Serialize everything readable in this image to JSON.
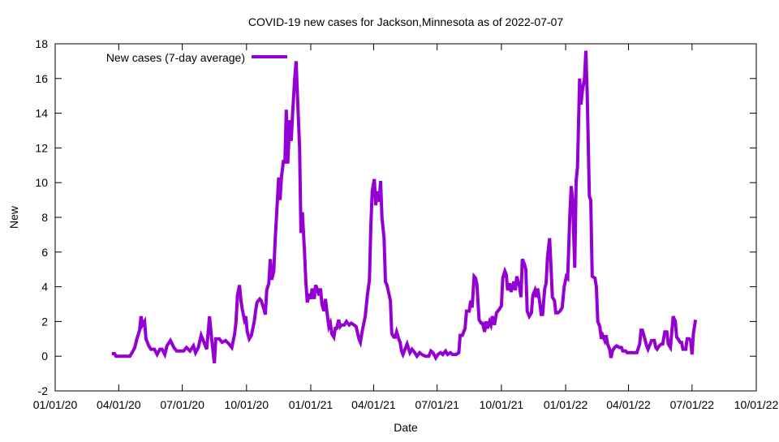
{
  "chart_data": {
    "type": "line",
    "title": "COVID-19 new cases for Jackson,Minnesota as of 2022-07-07",
    "xlabel": "Date",
    "ylabel": "New",
    "x_units": "days since 2020-01-01",
    "xlim": [
      0,
      1004
    ],
    "ylim": [
      -2,
      18
    ],
    "yticks": [
      -2,
      0,
      2,
      4,
      6,
      8,
      10,
      12,
      14,
      16,
      18
    ],
    "xticks": [
      {
        "day": 0,
        "label": "01/01/20"
      },
      {
        "day": 91,
        "label": "04/01/20"
      },
      {
        "day": 182,
        "label": "07/01/20"
      },
      {
        "day": 274,
        "label": "10/01/20"
      },
      {
        "day": 366,
        "label": "01/01/21"
      },
      {
        "day": 456,
        "label": "04/01/21"
      },
      {
        "day": 547,
        "label": "07/01/21"
      },
      {
        "day": 639,
        "label": "10/01/21"
      },
      {
        "day": 731,
        "label": "01/01/22"
      },
      {
        "day": 821,
        "label": "04/01/22"
      },
      {
        "day": 912,
        "label": "07/01/22"
      },
      {
        "day": 1004,
        "label": "10/01/22"
      }
    ],
    "grid": false,
    "legend_position": "top-left",
    "series": [
      {
        "name": "New cases (7-day average)",
        "color": "#9400D3",
        "points": [
          [
            81,
            0.15
          ],
          [
            85,
            0.15
          ],
          [
            87,
            0
          ],
          [
            107,
            0
          ],
          [
            110,
            0.2
          ],
          [
            114,
            0.5
          ],
          [
            117,
            1.0
          ],
          [
            121,
            1.5
          ],
          [
            123,
            2.3
          ],
          [
            125,
            1.8
          ],
          [
            128,
            2.0
          ],
          [
            130,
            1.0
          ],
          [
            134,
            0.6
          ],
          [
            137,
            0.4
          ],
          [
            142,
            0.4
          ],
          [
            146,
            0.1
          ],
          [
            150,
            0.4
          ],
          [
            153,
            0.4
          ],
          [
            157,
            0.1
          ],
          [
            160,
            0.6
          ],
          [
            165,
            0.9
          ],
          [
            170,
            0.5
          ],
          [
            174,
            0.3
          ],
          [
            179,
            0.3
          ],
          [
            184,
            0.3
          ],
          [
            188,
            0.5
          ],
          [
            193,
            0.3
          ],
          [
            198,
            0.6
          ],
          [
            201,
            0.2
          ],
          [
            205,
            0.5
          ],
          [
            209,
            1.2
          ],
          [
            214,
            0.7
          ],
          [
            217,
            0.4
          ],
          [
            221,
            2.3
          ],
          [
            224,
            1.0
          ],
          [
            228,
            -0.4
          ],
          [
            230,
            1.0
          ],
          [
            235,
            1.0
          ],
          [
            239,
            0.8
          ],
          [
            244,
            0.9
          ],
          [
            249,
            0.7
          ],
          [
            253,
            0.5
          ],
          [
            257,
            1.3
          ],
          [
            259,
            2.0
          ],
          [
            261,
            3.5
          ],
          [
            264,
            4.1
          ],
          [
            266,
            3.2
          ],
          [
            268,
            2.7
          ],
          [
            271,
            2.1
          ],
          [
            273,
            2.3
          ],
          [
            275,
            1.4
          ],
          [
            278,
            1.0
          ],
          [
            281,
            1.2
          ],
          [
            285,
            2.0
          ],
          [
            287,
            2.6
          ],
          [
            289,
            3.1
          ],
          [
            293,
            3.3
          ],
          [
            295,
            3.2
          ],
          [
            299,
            2.7
          ],
          [
            301,
            2.4
          ],
          [
            303,
            3.8
          ],
          [
            306,
            4.2
          ],
          [
            308,
            5.6
          ],
          [
            310,
            4.4
          ],
          [
            313,
            4.9
          ],
          [
            315,
            6.7
          ],
          [
            317,
            8.1
          ],
          [
            320,
            10.3
          ],
          [
            322,
            9.0
          ],
          [
            324,
            10.3
          ],
          [
            327,
            11.3
          ],
          [
            329,
            11.1
          ],
          [
            331,
            14.2
          ],
          [
            333,
            11.1
          ],
          [
            336,
            13.6
          ],
          [
            338,
            12.4
          ],
          [
            340,
            14.0
          ],
          [
            343,
            16.0
          ],
          [
            345,
            17.0
          ],
          [
            347,
            15.0
          ],
          [
            350,
            12.0
          ],
          [
            352,
            7.1
          ],
          [
            354,
            8.3
          ],
          [
            357,
            6.1
          ],
          [
            359,
            4.3
          ],
          [
            361,
            3.1
          ],
          [
            364,
            3.6
          ],
          [
            366,
            3.3
          ],
          [
            368,
            3.9
          ],
          [
            371,
            3.3
          ],
          [
            373,
            4.1
          ],
          [
            375,
            3.9
          ],
          [
            378,
            3.5
          ],
          [
            380,
            3.9
          ],
          [
            382,
            3.0
          ],
          [
            385,
            2.6
          ],
          [
            387,
            3.3
          ],
          [
            389,
            2.6
          ],
          [
            392,
            1.7
          ],
          [
            394,
            1.9
          ],
          [
            396,
            1.3
          ],
          [
            399,
            1.1
          ],
          [
            401,
            1.6
          ],
          [
            403,
            1.6
          ],
          [
            406,
            2.1
          ],
          [
            408,
            1.7
          ],
          [
            410,
            1.8
          ],
          [
            414,
            1.8
          ],
          [
            417,
            2.0
          ],
          [
            421,
            1.8
          ],
          [
            424,
            1.9
          ],
          [
            428,
            1.8
          ],
          [
            431,
            1.7
          ],
          [
            435,
            1.0
          ],
          [
            437,
            0.8
          ],
          [
            440,
            1.5
          ],
          [
            444,
            2.3
          ],
          [
            447,
            3.5
          ],
          [
            450,
            4.4
          ],
          [
            452,
            7.5
          ],
          [
            454,
            9.5
          ],
          [
            457,
            10.2
          ],
          [
            459,
            8.7
          ],
          [
            461,
            9.5
          ],
          [
            464,
            8.9
          ],
          [
            466,
            10.1
          ],
          [
            468,
            8.0
          ],
          [
            471,
            6.8
          ],
          [
            473,
            4.3
          ],
          [
            475,
            4.1
          ],
          [
            478,
            3.6
          ],
          [
            480,
            3.2
          ],
          [
            482,
            1.3
          ],
          [
            485,
            1.1
          ],
          [
            487,
            1.1
          ],
          [
            489,
            1.4
          ],
          [
            492,
            1.0
          ],
          [
            494,
            0.8
          ],
          [
            496,
            0.3
          ],
          [
            498,
            0.1
          ],
          [
            501,
            0.4
          ],
          [
            504,
            0.7
          ],
          [
            508,
            0.2
          ],
          [
            511,
            0.4
          ],
          [
            515,
            0.2
          ],
          [
            518,
            0.0
          ],
          [
            522,
            0.2
          ],
          [
            525,
            0.1
          ],
          [
            530,
            0.0
          ],
          [
            535,
            0.0
          ],
          [
            538,
            0.3
          ],
          [
            541,
            0.2
          ],
          [
            545,
            -0.1
          ],
          [
            548,
            0.1
          ],
          [
            552,
            0.2
          ],
          [
            555,
            0.1
          ],
          [
            559,
            0.3
          ],
          [
            562,
            0.1
          ],
          [
            566,
            0.2
          ],
          [
            569,
            0.1
          ],
          [
            574,
            0.1
          ],
          [
            578,
            0.2
          ],
          [
            580,
            1.2
          ],
          [
            583,
            1.2
          ],
          [
            587,
            1.6
          ],
          [
            589,
            2.6
          ],
          [
            593,
            2.6
          ],
          [
            595,
            3.2
          ],
          [
            597,
            2.8
          ],
          [
            600,
            4.6
          ],
          [
            602,
            4.5
          ],
          [
            604,
            4.1
          ],
          [
            607,
            2.1
          ],
          [
            610,
            1.9
          ],
          [
            612,
            1.9
          ],
          [
            615,
            1.4
          ],
          [
            617,
            2.0
          ],
          [
            619,
            1.6
          ],
          [
            622,
            2.0
          ],
          [
            624,
            1.8
          ],
          [
            626,
            2.3
          ],
          [
            629,
            1.8
          ],
          [
            632,
            2.5
          ],
          [
            636,
            2.7
          ],
          [
            639,
            2.9
          ],
          [
            641,
            4.5
          ],
          [
            644,
            4.9
          ],
          [
            646,
            4.7
          ],
          [
            648,
            3.8
          ],
          [
            651,
            4.2
          ],
          [
            653,
            3.7
          ],
          [
            657,
            4.3
          ],
          [
            659,
            3.8
          ],
          [
            661,
            4.6
          ],
          [
            665,
            4.0
          ],
          [
            667,
            3.4
          ],
          [
            669,
            5.6
          ],
          [
            672,
            5.3
          ],
          [
            674,
            5.0
          ],
          [
            676,
            2.6
          ],
          [
            679,
            2.3
          ],
          [
            682,
            2.5
          ],
          [
            684,
            3.5
          ],
          [
            687,
            3.8
          ],
          [
            689,
            3.4
          ],
          [
            691,
            3.9
          ],
          [
            694,
            3.1
          ],
          [
            696,
            2.4
          ],
          [
            698,
            2.4
          ],
          [
            701,
            3.9
          ],
          [
            703,
            4.2
          ],
          [
            705,
            5.7
          ],
          [
            708,
            6.8
          ],
          [
            710,
            5.2
          ],
          [
            712,
            3.4
          ],
          [
            715,
            3.2
          ],
          [
            717,
            2.5
          ],
          [
            720,
            2.5
          ],
          [
            723,
            2.6
          ],
          [
            726,
            2.8
          ],
          [
            729,
            4.0
          ],
          [
            732,
            4.6
          ],
          [
            734,
            4.5
          ],
          [
            737,
            8.1
          ],
          [
            739,
            9.8
          ],
          [
            741,
            9.0
          ],
          [
            744,
            5.1
          ],
          [
            746,
            10.1
          ],
          [
            748,
            10.9
          ],
          [
            751,
            16.0
          ],
          [
            753,
            14.5
          ],
          [
            755,
            15.3
          ],
          [
            758,
            16.0
          ],
          [
            760,
            17.6
          ],
          [
            762,
            15.0
          ],
          [
            765,
            9.2
          ],
          [
            767,
            9.0
          ],
          [
            769,
            4.6
          ],
          [
            773,
            4.5
          ],
          [
            775,
            4.0
          ],
          [
            777,
            2.0
          ],
          [
            780,
            1.7
          ],
          [
            782,
            1.0
          ],
          [
            784,
            1.2
          ],
          [
            787,
            0.9
          ],
          [
            789,
            1.2
          ],
          [
            791,
            0.7
          ],
          [
            794,
            0.4
          ],
          [
            796,
            -0.1
          ],
          [
            798,
            0.3
          ],
          [
            801,
            0.5
          ],
          [
            804,
            0.6
          ],
          [
            808,
            0.5
          ],
          [
            811,
            0.5
          ],
          [
            813,
            0.3
          ],
          [
            817,
            0.3
          ],
          [
            819,
            0.2
          ],
          [
            823,
            0.2
          ],
          [
            826,
            0.2
          ],
          [
            830,
            0.2
          ],
          [
            833,
            0.2
          ],
          [
            837,
            0.7
          ],
          [
            839,
            1.5
          ],
          [
            841,
            1.5
          ],
          [
            845,
            0.9
          ],
          [
            847,
            0.6
          ],
          [
            849,
            0.4
          ],
          [
            852,
            0.7
          ],
          [
            854,
            0.9
          ],
          [
            858,
            0.9
          ],
          [
            860,
            0.5
          ],
          [
            862,
            0.4
          ],
          [
            865,
            0.6
          ],
          [
            868,
            0.7
          ],
          [
            870,
            0.7
          ],
          [
            873,
            1.4
          ],
          [
            876,
            1.4
          ],
          [
            878,
            0.7
          ],
          [
            881,
            0.5
          ],
          [
            883,
            1.4
          ],
          [
            885,
            2.3
          ],
          [
            888,
            2.0
          ],
          [
            890,
            1.1
          ],
          [
            892,
            1.0
          ],
          [
            895,
            0.8
          ],
          [
            897,
            0.8
          ],
          [
            899,
            0.4
          ],
          [
            903,
            0.4
          ],
          [
            905,
            1.0
          ],
          [
            908,
            1.0
          ],
          [
            910,
            0.9
          ],
          [
            912,
            0.1
          ],
          [
            914,
            1.3
          ],
          [
            917,
            2.1
          ]
        ]
      }
    ]
  }
}
